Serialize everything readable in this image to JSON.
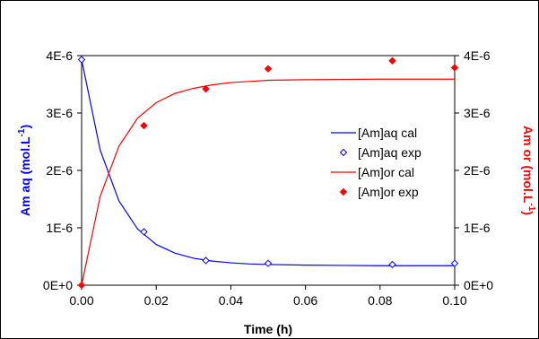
{
  "chart_data": {
    "type": "line",
    "xlabel": "Time (h)",
    "ylabel_left": "Am aq (mol.L",
    "ylabel_left_sup": "-1",
    "ylabel_left_close": ")",
    "ylabel_right": "Am or (mol.L",
    "ylabel_right_sup": "-1",
    "ylabel_right_close": ")",
    "xlim": [
      0.0,
      0.1
    ],
    "ylim": [
      0,
      4e-06
    ],
    "x_ticks": [
      "0.00",
      "0.02",
      "0.04",
      "0.06",
      "0.08",
      "0.10"
    ],
    "y_ticks_left": [
      "0E+0",
      "1E-6",
      "2E-6",
      "3E-6",
      "4E-6"
    ],
    "y_ticks_right": [
      "0E+0",
      "1E-6",
      "2E-6",
      "3E-6",
      "4E-6"
    ],
    "grid": false,
    "legend_position": "center-right",
    "colors": {
      "aq": "#0000FF",
      "or": "#FF0000",
      "frame": "#000000"
    },
    "series": [
      {
        "name": "[Am]aq cal",
        "kind": "line",
        "color": "#0000FF",
        "x": [
          0.0,
          0.005,
          0.01,
          0.015,
          0.02,
          0.025,
          0.03,
          0.035,
          0.04,
          0.045,
          0.05,
          0.06,
          0.07,
          0.08,
          0.09,
          0.1
        ],
        "y": [
          3.93e-06,
          2.35e-06,
          1.47e-06,
          9.8e-07,
          7.1e-07,
          5.6e-07,
          4.7e-07,
          4.2e-07,
          3.9e-07,
          3.7e-07,
          3.6e-07,
          3.5e-07,
          3.45e-07,
          3.4e-07,
          3.4e-07,
          3.4e-07
        ]
      },
      {
        "name": "[Am]aq exp",
        "kind": "marker",
        "marker": "diamond-open",
        "color": "#0000FF",
        "x": [
          0.0,
          0.0167,
          0.0333,
          0.05,
          0.0833,
          0.1
        ],
        "y": [
          3.93e-06,
          9.3e-07,
          4.3e-07,
          3.8e-07,
          3.6e-07,
          3.8e-07
        ]
      },
      {
        "name": "[Am]or cal",
        "kind": "line",
        "color": "#FF0000",
        "x": [
          0.0,
          0.005,
          0.01,
          0.015,
          0.02,
          0.025,
          0.03,
          0.035,
          0.04,
          0.045,
          0.05,
          0.06,
          0.07,
          0.08,
          0.09,
          0.1
        ],
        "y": [
          0.0,
          1.55e-06,
          2.42e-06,
          2.91e-06,
          3.18e-06,
          3.34e-06,
          3.43e-06,
          3.49e-06,
          3.53e-06,
          3.55e-06,
          3.57e-06,
          3.58e-06,
          3.585e-06,
          3.59e-06,
          3.59e-06,
          3.59e-06
        ]
      },
      {
        "name": "[Am]or exp",
        "kind": "marker",
        "marker": "diamond-filled",
        "color": "#FF0000",
        "x": [
          0.0,
          0.0167,
          0.0333,
          0.05,
          0.0833,
          0.1
        ],
        "y": [
          0.0,
          2.78e-06,
          3.42e-06,
          3.77e-06,
          3.91e-06,
          3.79e-06
        ]
      }
    ]
  }
}
